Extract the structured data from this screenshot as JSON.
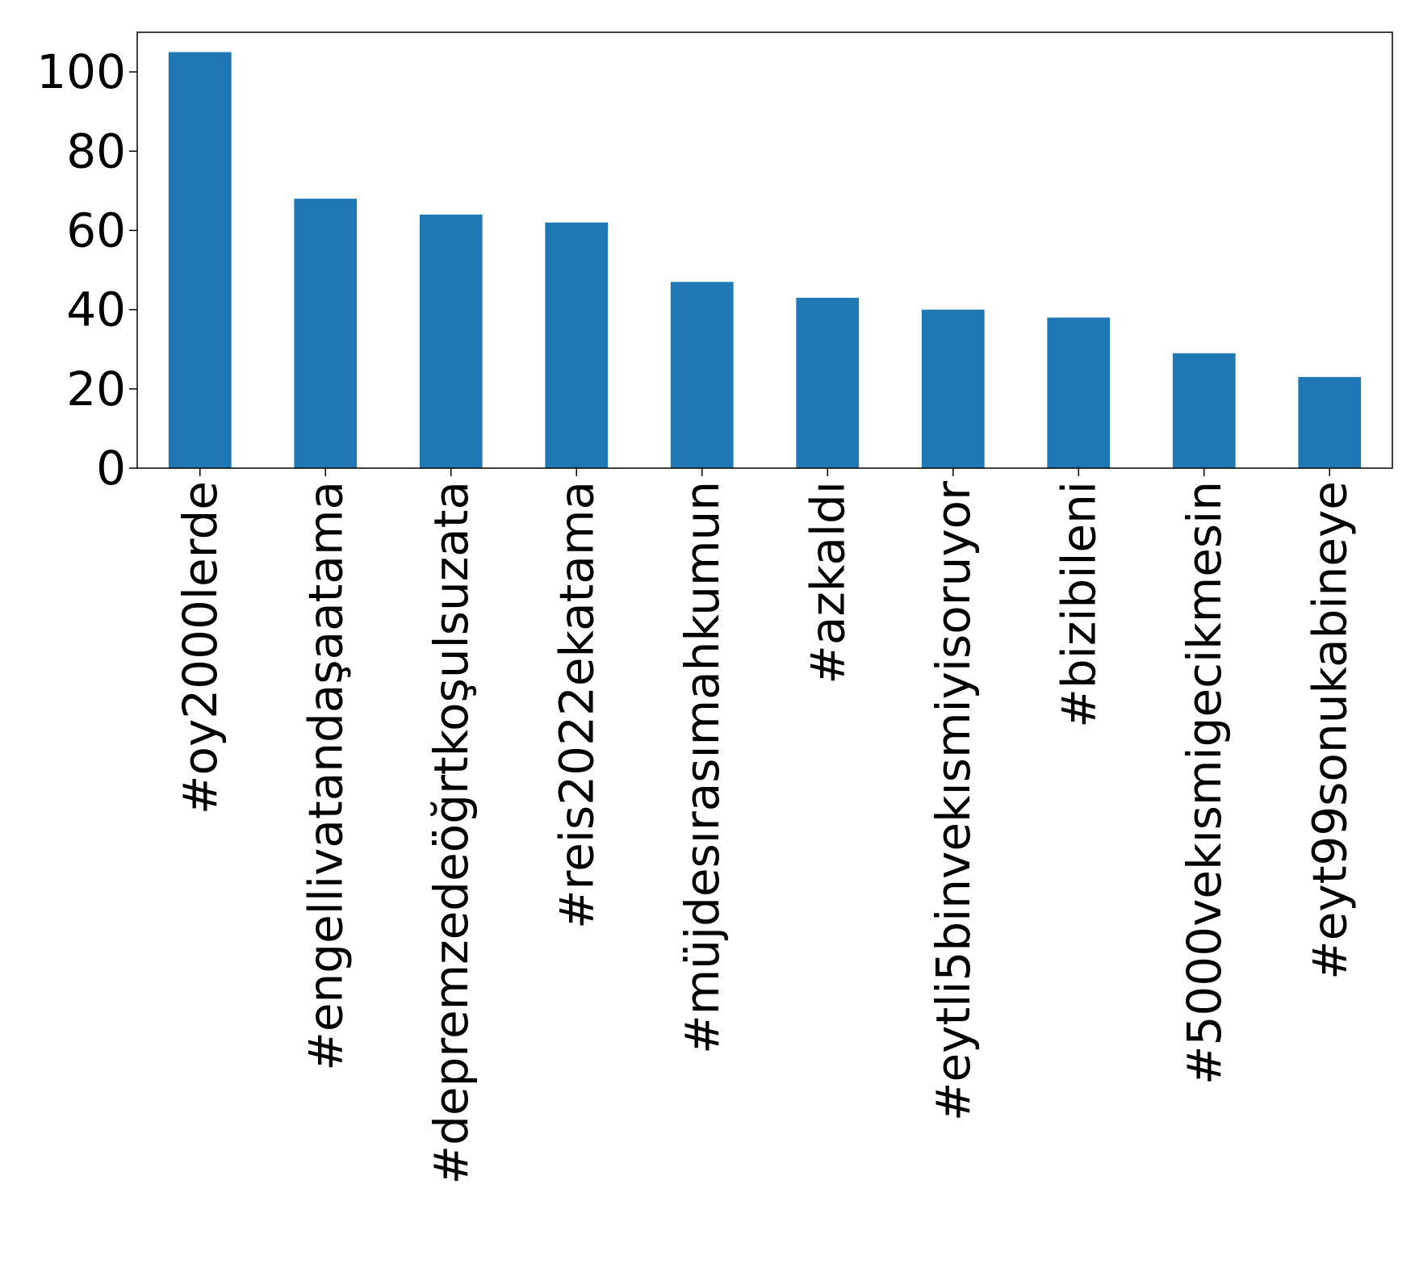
{
  "chart_data": {
    "type": "bar",
    "title": "",
    "xlabel": "",
    "ylabel": "",
    "categories": [
      "#oy2000lerde",
      "#engellivatandaşaatama",
      "#depremzedeöğrtkoşulsuzata",
      "#reis2022ekatama",
      "#müjdesırasımahkumun",
      "#azkaldı",
      "#eytli5binvekısmiyisoruyor",
      "#bizibileni",
      "#5000vekısmigecikmesin",
      "#eyt99sonukabineye"
    ],
    "values": [
      105,
      68,
      64,
      62,
      47,
      43,
      40,
      38,
      29,
      23
    ],
    "ylim": [
      0,
      110
    ],
    "yticks": [
      0,
      20,
      40,
      60,
      80,
      100
    ],
    "grid": false,
    "legend": "none",
    "bar_color": "#1f77b4"
  }
}
